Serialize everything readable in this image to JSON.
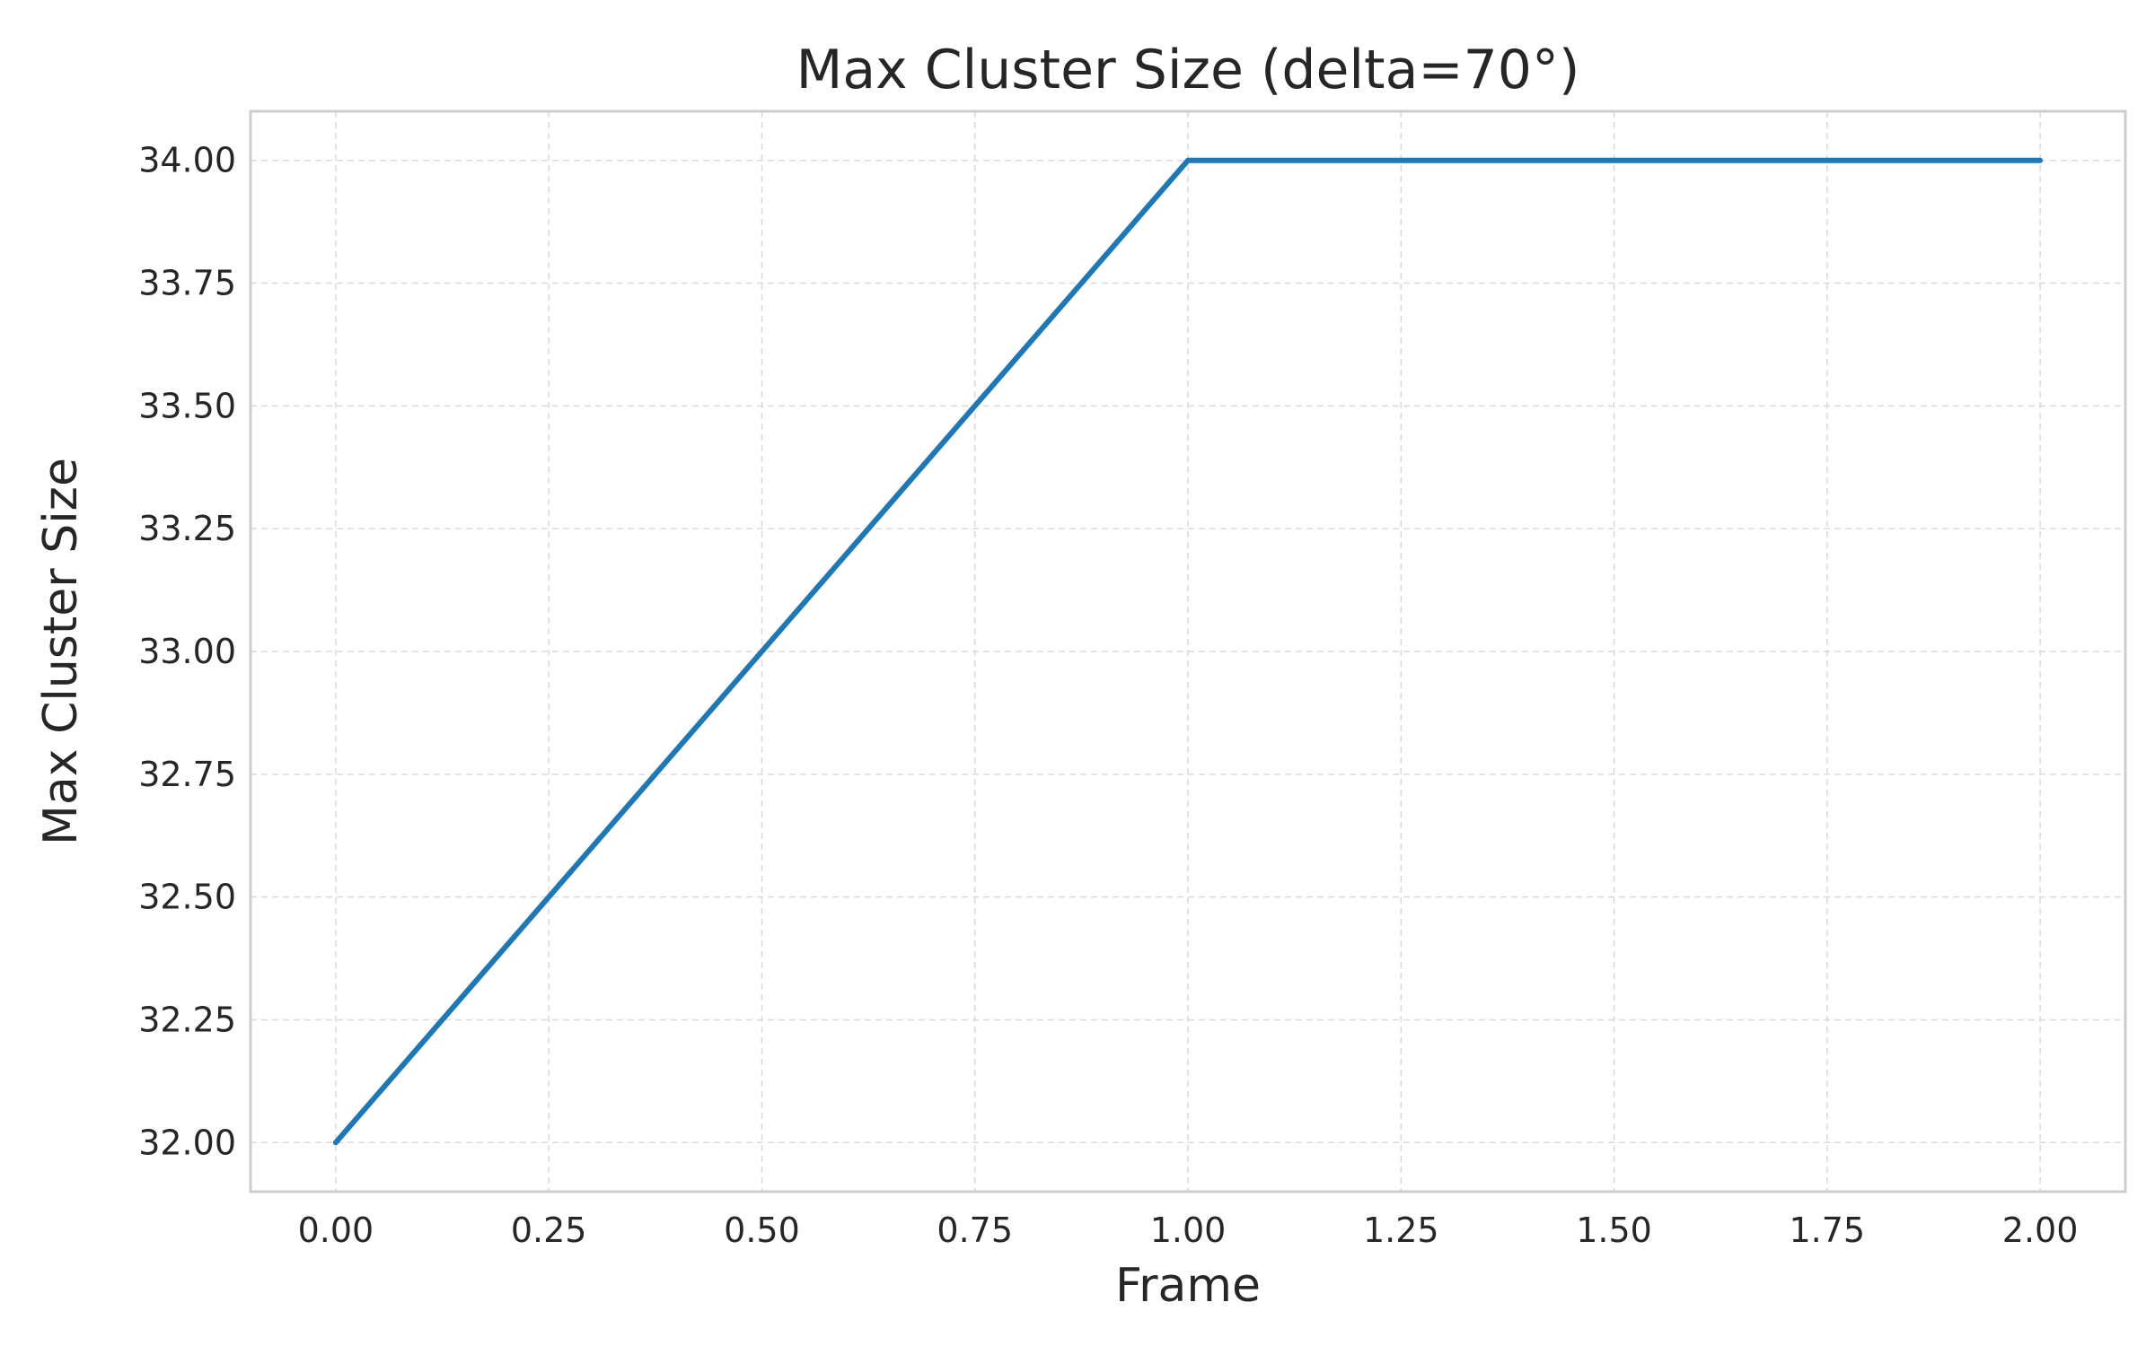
{
  "chart_data": {
    "type": "line",
    "title": "Max Cluster Size (delta=70°)",
    "xlabel": "Frame",
    "ylabel": "Max Cluster Size",
    "xlim": [
      -0.1,
      2.1
    ],
    "ylim": [
      31.9,
      34.1
    ],
    "xticks": [
      "0.00",
      "0.25",
      "0.50",
      "0.75",
      "1.00",
      "1.25",
      "1.50",
      "1.75",
      "2.00"
    ],
    "yticks": [
      "32.00",
      "32.25",
      "32.50",
      "32.75",
      "33.00",
      "33.25",
      "33.50",
      "33.75",
      "34.00"
    ],
    "grid": true,
    "series": [
      {
        "color": "#1f77b4",
        "x": [
          0,
          1,
          2
        ],
        "y": [
          32,
          34,
          34
        ]
      }
    ]
  }
}
